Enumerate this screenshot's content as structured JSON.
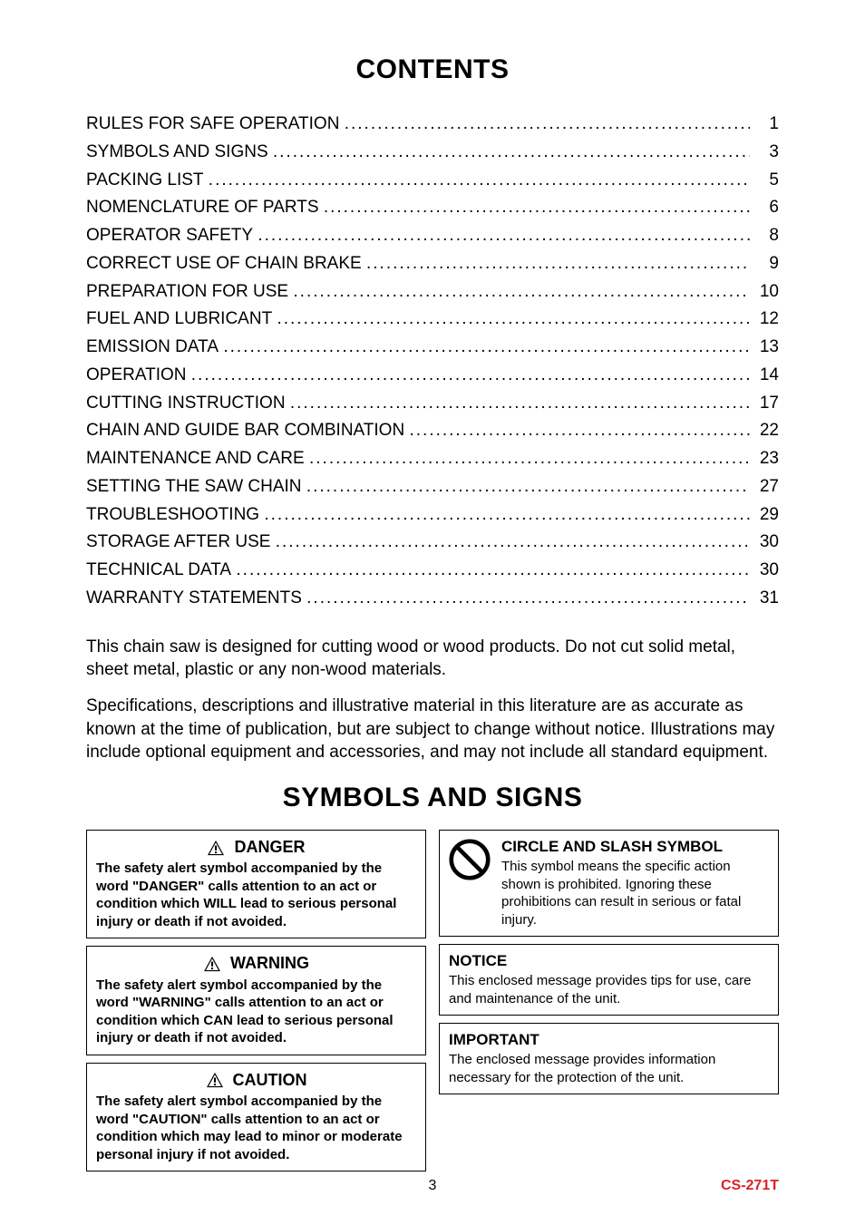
{
  "contents_title": "CONTENTS",
  "toc": [
    {
      "label": "RULES FOR SAFE OPERATION",
      "page": "1"
    },
    {
      "label": "SYMBOLS AND SIGNS",
      "page": "3"
    },
    {
      "label": "PACKING LIST",
      "page": "5"
    },
    {
      "label": "NOMENCLATURE OF PARTS",
      "page": "6"
    },
    {
      "label": "OPERATOR SAFETY",
      "page": "8"
    },
    {
      "label": "CORRECT USE OF CHAIN BRAKE",
      "page": "9"
    },
    {
      "label": "PREPARATION FOR USE",
      "page": "10"
    },
    {
      "label": "FUEL AND LUBRICANT",
      "page": "12"
    },
    {
      "label": "EMISSION DATA",
      "page": "13"
    },
    {
      "label": "OPERATION",
      "page": "14"
    },
    {
      "label": "CUTTING INSTRUCTION",
      "page": "17"
    },
    {
      "label": "CHAIN AND GUIDE BAR COMBINATION",
      "page": "22"
    },
    {
      "label": "MAINTENANCE AND CARE",
      "page": "23"
    },
    {
      "label": "SETTING THE SAW CHAIN",
      "page": "27"
    },
    {
      "label": "TROUBLESHOOTING",
      "page": "29"
    },
    {
      "label": "STORAGE AFTER USE",
      "page": "30"
    },
    {
      "label": "TECHNICAL DATA",
      "page": "30"
    },
    {
      "label": "WARRANTY STATEMENTS",
      "page": "31"
    }
  ],
  "paragraph1": "This chain saw is designed for cutting wood or wood products. Do not cut solid metal, sheet metal, plastic or any non-wood materials.",
  "paragraph2": "Specifications, descriptions and illustrative material in this literature are as accurate as known at the time of publication, but are subject to change without notice. Illustrations may include optional equipment and accessories, and may not include all standard equipment.",
  "symbols_title": "SYMBOLS AND SIGNS",
  "danger": {
    "title": "DANGER",
    "text": "The safety alert symbol accompanied by the word \"DANGER\" calls attention to an act or condition which WILL lead to serious personal injury or death if not avoided."
  },
  "warning": {
    "title": "WARNING",
    "text": "The safety alert symbol accompanied by the word \"WARNING\" calls attention to an act or condition which CAN lead to serious personal injury or death if not avoided."
  },
  "caution": {
    "title": "CAUTION",
    "text": "The safety alert symbol accompanied by the word \"CAUTION\" calls attention to an act or condition which may lead to minor or moderate personal injury if not avoided."
  },
  "circle": {
    "title": "CIRCLE AND SLASH SYMBOL",
    "text": "This symbol means the specific action shown is prohibited. Ignoring these prohibitions can result in serious or fatal injury."
  },
  "notice": {
    "title": "NOTICE",
    "text": "This enclosed message provides tips for use, care and maintenance of the unit."
  },
  "important": {
    "title": "IMPORTANT",
    "text": "The enclosed message provides information necessary for the protection of the unit."
  },
  "footer_page": "3",
  "footer_model": "CS-271T",
  "colors": {
    "text": "#000000",
    "background": "#ffffff",
    "accent": "#d9232a",
    "border": "#000000"
  }
}
